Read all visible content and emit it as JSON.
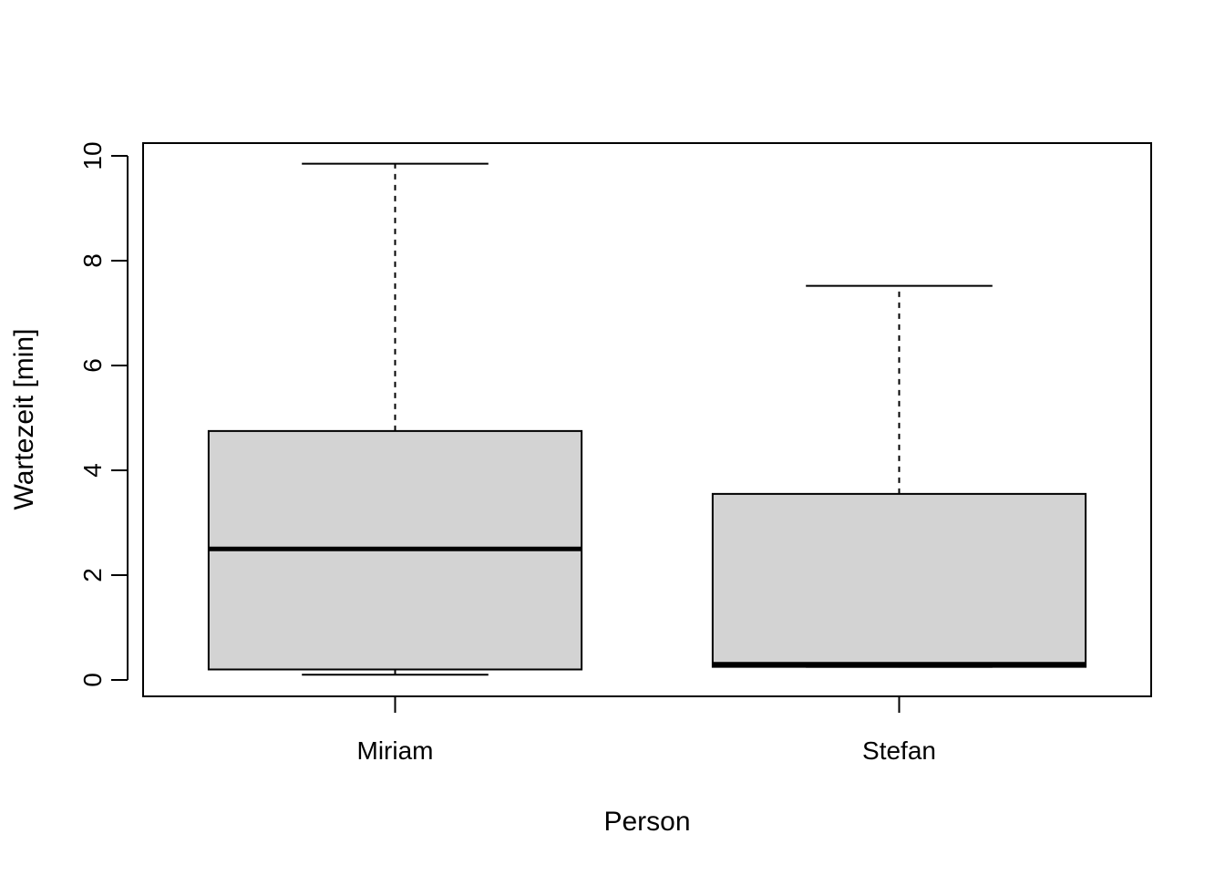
{
  "chart_data": {
    "type": "boxplot",
    "title": "",
    "xlabel": "Person",
    "ylabel": "Wartezeit [min]",
    "ylim": [
      -0.3,
      10.25
    ],
    "y_ticks": [
      0,
      2,
      4,
      6,
      8,
      10
    ],
    "grid": false,
    "categories": [
      "Miriam",
      "Stefan"
    ],
    "series": [
      {
        "category": "Miriam",
        "min": 0.1,
        "q1": 0.2,
        "median": 2.5,
        "q3": 4.75,
        "max": 9.85
      },
      {
        "category": "Stefan",
        "min": 0.25,
        "q1": 0.25,
        "median": 0.3,
        "q3": 3.55,
        "max": 7.52
      }
    ],
    "colors": {
      "box_fill": "#d3d3d3",
      "stroke": "#000000",
      "background": "#ffffff"
    }
  }
}
